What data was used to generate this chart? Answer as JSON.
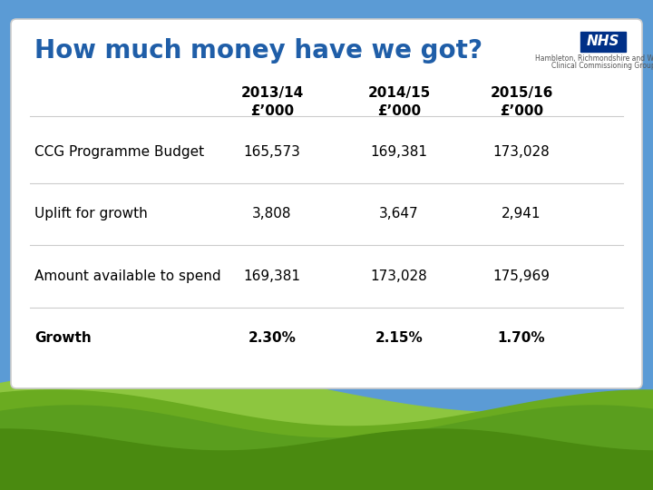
{
  "title": "How much money have we got?",
  "title_color": "#1F5EA8",
  "title_fontsize": 20,
  "sky_color": "#5b9bd5",
  "nhs_box_color": "#003087",
  "nhs_text": "NHS",
  "org_line1": "Hambleton, Richmondshire and Whitby",
  "org_line2": "Clinical Commissioning Group",
  "col_headers": [
    "2013/14\n£’000",
    "2014/15\n£’000",
    "2015/16\n£’000"
  ],
  "col_header_fontsize": 11,
  "rows": [
    {
      "label": "CCG Programme Budget",
      "bold": false,
      "values": [
        "165,573",
        "169,381",
        "173,028"
      ]
    },
    {
      "label": "Uplift for growth",
      "bold": false,
      "values": [
        "3,808",
        "3,647",
        "2,941"
      ]
    },
    {
      "label": "Amount available to spend",
      "bold": false,
      "values": [
        "169,381",
        "173,028",
        "175,969"
      ]
    },
    {
      "label": "Growth",
      "bold": true,
      "values": [
        "2.30%",
        "2.15%",
        "1.70%"
      ]
    }
  ],
  "row_fontsize": 11,
  "separator_color": "#cccccc",
  "grass_back_color": "#8dc63f",
  "grass_mid_color": "#6aab20",
  "grass_front_color": "#5a9e1e",
  "grass_dark_color": "#4a8a10"
}
